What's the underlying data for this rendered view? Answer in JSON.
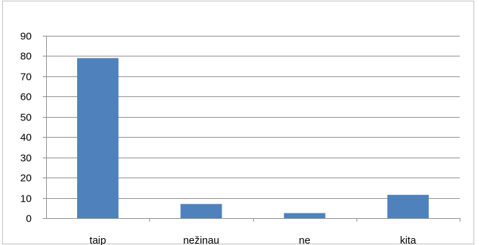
{
  "chart_data": {
    "type": "bar",
    "categories": [
      "taip",
      "nežinau",
      "ne",
      "kita"
    ],
    "values": [
      79,
      7,
      2.5,
      11.5
    ],
    "ylim": [
      0,
      90
    ],
    "yticks": [
      0,
      10,
      20,
      30,
      40,
      50,
      60,
      70,
      80,
      90
    ],
    "grid": true,
    "legend": "none",
    "colors": {
      "bar": "#4f81bd",
      "grid": "#8c8c8c",
      "axis": "#8c8c8c"
    }
  }
}
